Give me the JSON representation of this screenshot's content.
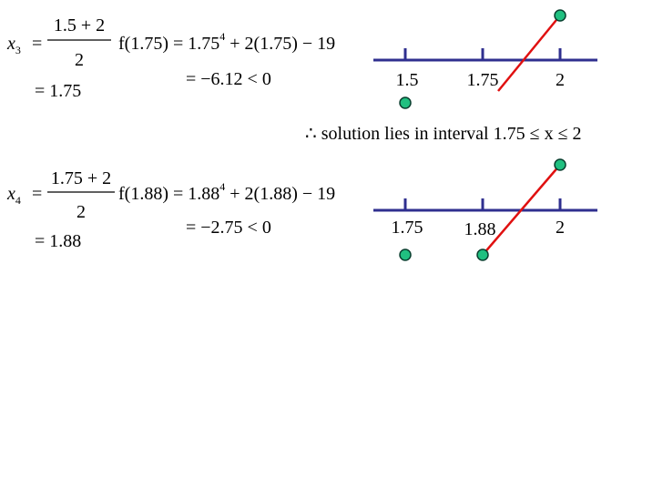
{
  "steps": [
    {
      "var": "x",
      "sub": "3",
      "eq": "=",
      "numerator": "1.5 + 2",
      "denominator": "2",
      "result": "= 1.75",
      "f_base": "f(1.75) = 1.75",
      "f_exp": "4",
      "f_rest": " + 2(1.75) − 19",
      "f_value": "= −6.12 < 0",
      "line_labels": [
        "1.5",
        "1.75",
        "2"
      ]
    },
    {
      "var": "x",
      "sub": "4",
      "eq": "=",
      "numerator": "1.75 + 2",
      "denominator": "2",
      "result": "= 1.88",
      "f_base": "f(1.88) = 1.88",
      "f_exp": "4",
      "f_rest": " + 2(1.88) − 19",
      "f_value": "= −2.75 < 0",
      "line_labels": [
        "1.75",
        "1.88",
        "2"
      ]
    }
  ],
  "conclusion": "∴ solution lies in interval 1.75 ≤ x ≤ 2"
}
